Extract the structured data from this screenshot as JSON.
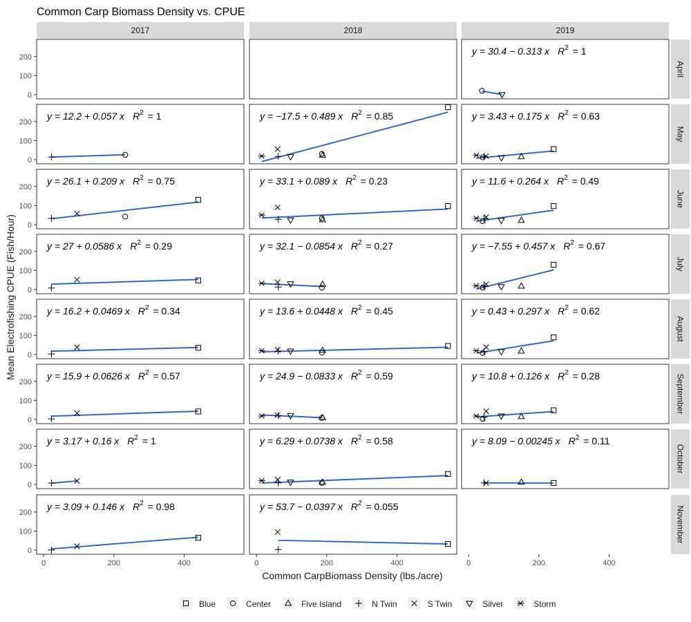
{
  "chart_data": {
    "type": "scatter",
    "title": "Common Carp Biomass Density vs. CPUE",
    "xlabel": "Common CarpBiomass Density (lbs./acre)",
    "ylabel": "Mean Electrofishing CPUE (Fish/Hour)",
    "xlim": [
      -20,
      570
    ],
    "ylim": [
      -22,
      290
    ],
    "x_ticks": [
      0,
      200,
      400
    ],
    "y_ticks": [
      0,
      100,
      200
    ],
    "grid": false,
    "legend_position": "bottom",
    "line_color": "#3366cc",
    "years": [
      "2017",
      "2018",
      "2019"
    ],
    "months": [
      "April",
      "May",
      "June",
      "July",
      "August",
      "September",
      "October",
      "November"
    ],
    "legend": [
      {
        "name": "Blue",
        "shape": "square"
      },
      {
        "name": "Center",
        "shape": "circle"
      },
      {
        "name": "Five Island",
        "shape": "triangle-up"
      },
      {
        "name": "N Twin",
        "shape": "plus"
      },
      {
        "name": "S Twin",
        "shape": "cross"
      },
      {
        "name": "Silver",
        "shape": "triangle-down"
      },
      {
        "name": "Storm",
        "shape": "asterisk"
      }
    ],
    "panels": [
      {
        "month": "April",
        "year": "2019",
        "eq_lhs": "y = 30.4 − 0.313 x",
        "r2": "1",
        "fit": {
          "intercept": 30.4,
          "slope": -0.313,
          "x_range": [
            38,
            95
          ]
        },
        "points": [
          {
            "lake": "Center",
            "x": 38,
            "y": 20
          },
          {
            "lake": "Silver",
            "x": 95,
            "y": 0
          }
        ]
      },
      {
        "month": "May",
        "year": "2017",
        "eq_lhs": "y = 12.2 + 0.057 x",
        "r2": "1",
        "fit": {
          "intercept": 12.2,
          "slope": 0.057,
          "x_range": [
            22,
            232
          ]
        },
        "points": [
          {
            "lake": "N Twin",
            "x": 22,
            "y": 14
          },
          {
            "lake": "Center",
            "x": 232,
            "y": 25
          }
        ]
      },
      {
        "month": "May",
        "year": "2018",
        "eq_lhs": "y = −17.5 + 0.489 x",
        "r2": "0.85",
        "fit": {
          "intercept": -17.5,
          "slope": 0.489,
          "x_range": [
            15,
            545
          ]
        },
        "points": [
          {
            "lake": "Storm",
            "x": 15,
            "y": 18
          },
          {
            "lake": "S Twin",
            "x": 60,
            "y": 55
          },
          {
            "lake": "N Twin",
            "x": 62,
            "y": 17
          },
          {
            "lake": "Silver",
            "x": 97,
            "y": 15
          },
          {
            "lake": "Center",
            "x": 186,
            "y": 30
          },
          {
            "lake": "Five Island",
            "x": 188,
            "y": 23
          },
          {
            "lake": "Blue",
            "x": 545,
            "y": 275
          }
        ]
      },
      {
        "month": "May",
        "year": "2019",
        "eq_lhs": "y = 3.43 + 0.175 x",
        "r2": "0.63",
        "fit": {
          "intercept": 3.43,
          "slope": 0.175,
          "x_range": [
            22,
            242
          ]
        },
        "points": [
          {
            "lake": "Storm",
            "x": 22,
            "y": 22
          },
          {
            "lake": "Center",
            "x": 40,
            "y": 12
          },
          {
            "lake": "N Twin",
            "x": 44,
            "y": 15
          },
          {
            "lake": "S Twin",
            "x": 50,
            "y": 18
          },
          {
            "lake": "Silver",
            "x": 93,
            "y": 10
          },
          {
            "lake": "Five Island",
            "x": 150,
            "y": 15
          },
          {
            "lake": "Blue",
            "x": 242,
            "y": 55
          }
        ]
      },
      {
        "month": "June",
        "year": "2017",
        "eq_lhs": "y = 26.1 + 0.209 x",
        "r2": "0.75",
        "fit": {
          "intercept": 26.1,
          "slope": 0.209,
          "x_range": [
            22,
            440
          ]
        },
        "points": [
          {
            "lake": "N Twin",
            "x": 22,
            "y": 33
          },
          {
            "lake": "S Twin",
            "x": 95,
            "y": 58
          },
          {
            "lake": "Center",
            "x": 232,
            "y": 42
          },
          {
            "lake": "Blue",
            "x": 440,
            "y": 130
          }
        ]
      },
      {
        "month": "June",
        "year": "2018",
        "eq_lhs": "y = 33.1 + 0.089 x",
        "r2": "0.23",
        "fit": {
          "intercept": 33.1,
          "slope": 0.089,
          "x_range": [
            15,
            545
          ]
        },
        "points": [
          {
            "lake": "Storm",
            "x": 15,
            "y": 50
          },
          {
            "lake": "S Twin",
            "x": 60,
            "y": 90
          },
          {
            "lake": "N Twin",
            "x": 62,
            "y": 28
          },
          {
            "lake": "Silver",
            "x": 97,
            "y": 24
          },
          {
            "lake": "Center",
            "x": 186,
            "y": 33
          },
          {
            "lake": "Five Island",
            "x": 188,
            "y": 25
          },
          {
            "lake": "Blue",
            "x": 545,
            "y": 97
          }
        ]
      },
      {
        "month": "June",
        "year": "2019",
        "eq_lhs": "y = 11.6 + 0.264 x",
        "r2": "0.49",
        "fit": {
          "intercept": 11.6,
          "slope": 0.264,
          "x_range": [
            22,
            242
          ]
        },
        "points": [
          {
            "lake": "Storm",
            "x": 22,
            "y": 33
          },
          {
            "lake": "Center",
            "x": 40,
            "y": 18
          },
          {
            "lake": "N Twin",
            "x": 44,
            "y": 30
          },
          {
            "lake": "S Twin",
            "x": 50,
            "y": 40
          },
          {
            "lake": "Silver",
            "x": 93,
            "y": 22
          },
          {
            "lake": "Five Island",
            "x": 150,
            "y": 22
          },
          {
            "lake": "Blue",
            "x": 242,
            "y": 97
          }
        ]
      },
      {
        "month": "July",
        "year": "2017",
        "eq_lhs": "y = 27 + 0.0586 x",
        "r2": "0.29",
        "fit": {
          "intercept": 27,
          "slope": 0.0586,
          "x_range": [
            22,
            440
          ]
        },
        "points": [
          {
            "lake": "N Twin",
            "x": 22,
            "y": 8
          },
          {
            "lake": "S Twin",
            "x": 95,
            "y": 52
          },
          {
            "lake": "Blue",
            "x": 440,
            "y": 48
          }
        ]
      },
      {
        "month": "July",
        "year": "2018",
        "eq_lhs": "y = 32.1 − 0.0854 x",
        "r2": "0.27",
        "fit": {
          "intercept": 32.1,
          "slope": -0.0854,
          "x_range": [
            15,
            188
          ]
        },
        "points": [
          {
            "lake": "Storm",
            "x": 15,
            "y": 33
          },
          {
            "lake": "S Twin",
            "x": 60,
            "y": 38
          },
          {
            "lake": "N Twin",
            "x": 62,
            "y": 13
          },
          {
            "lake": "Silver",
            "x": 97,
            "y": 30
          },
          {
            "lake": "Center",
            "x": 186,
            "y": 10
          },
          {
            "lake": "Five Island",
            "x": 188,
            "y": 27
          }
        ]
      },
      {
        "month": "July",
        "year": "2019",
        "eq_lhs": "y = −7.55 + 0.457 x",
        "r2": "0.67",
        "fit": {
          "intercept": -7.55,
          "slope": 0.457,
          "x_range": [
            22,
            242
          ]
        },
        "points": [
          {
            "lake": "Storm",
            "x": 22,
            "y": 20
          },
          {
            "lake": "Center",
            "x": 40,
            "y": 10
          },
          {
            "lake": "N Twin",
            "x": 44,
            "y": 18
          },
          {
            "lake": "S Twin",
            "x": 50,
            "y": 28
          },
          {
            "lake": "Silver",
            "x": 93,
            "y": 15
          },
          {
            "lake": "Five Island",
            "x": 150,
            "y": 18
          },
          {
            "lake": "Blue",
            "x": 242,
            "y": 130
          }
        ]
      },
      {
        "month": "August",
        "year": "2017",
        "eq_lhs": "y = 16.2 + 0.0469 x",
        "r2": "0.34",
        "fit": {
          "intercept": 16.2,
          "slope": 0.0469,
          "x_range": [
            22,
            440
          ]
        },
        "points": [
          {
            "lake": "N Twin",
            "x": 22,
            "y": 3
          },
          {
            "lake": "S Twin",
            "x": 95,
            "y": 38
          },
          {
            "lake": "Blue",
            "x": 440,
            "y": 35
          }
        ]
      },
      {
        "month": "August",
        "year": "2018",
        "eq_lhs": "y = 13.6 + 0.0448 x",
        "r2": "0.45",
        "fit": {
          "intercept": 13.6,
          "slope": 0.0448,
          "x_range": [
            15,
            545
          ]
        },
        "points": [
          {
            "lake": "Storm",
            "x": 15,
            "y": 20
          },
          {
            "lake": "S Twin",
            "x": 60,
            "y": 25
          },
          {
            "lake": "N Twin",
            "x": 62,
            "y": 18
          },
          {
            "lake": "Silver",
            "x": 97,
            "y": 18
          },
          {
            "lake": "Center",
            "x": 186,
            "y": 10
          },
          {
            "lake": "Five Island",
            "x": 188,
            "y": 22
          },
          {
            "lake": "Blue",
            "x": 545,
            "y": 45
          }
        ]
      },
      {
        "month": "August",
        "year": "2019",
        "eq_lhs": "y = 0.43 + 0.297 x",
        "r2": "0.62",
        "fit": {
          "intercept": 0.43,
          "slope": 0.297,
          "x_range": [
            22,
            242
          ]
        },
        "points": [
          {
            "lake": "Storm",
            "x": 22,
            "y": 20
          },
          {
            "lake": "Center",
            "x": 40,
            "y": 8
          },
          {
            "lake": "N Twin",
            "x": 44,
            "y": 15
          },
          {
            "lake": "S Twin",
            "x": 50,
            "y": 38
          },
          {
            "lake": "Silver",
            "x": 93,
            "y": 15
          },
          {
            "lake": "Five Island",
            "x": 150,
            "y": 18
          },
          {
            "lake": "Blue",
            "x": 242,
            "y": 90
          }
        ]
      },
      {
        "month": "September",
        "year": "2017",
        "eq_lhs": "y = 15.9 + 0.0626 x",
        "r2": "0.57",
        "fit": {
          "intercept": 15.9,
          "slope": 0.0626,
          "x_range": [
            22,
            440
          ]
        },
        "points": [
          {
            "lake": "N Twin",
            "x": 22,
            "y": 3
          },
          {
            "lake": "S Twin",
            "x": 95,
            "y": 33
          },
          {
            "lake": "Blue",
            "x": 440,
            "y": 42
          }
        ]
      },
      {
        "month": "September",
        "year": "2018",
        "eq_lhs": "y = 24.9 − 0.0833 x",
        "r2": "0.59",
        "fit": {
          "intercept": 24.9,
          "slope": -0.0833,
          "x_range": [
            15,
            188
          ]
        },
        "points": [
          {
            "lake": "Storm",
            "x": 15,
            "y": 18
          },
          {
            "lake": "S Twin",
            "x": 60,
            "y": 23
          },
          {
            "lake": "N Twin",
            "x": 62,
            "y": 20
          },
          {
            "lake": "Silver",
            "x": 97,
            "y": 20
          },
          {
            "lake": "Center",
            "x": 186,
            "y": 8
          },
          {
            "lake": "Five Island",
            "x": 188,
            "y": 10
          }
        ]
      },
      {
        "month": "September",
        "year": "2019",
        "eq_lhs": "y = 10.8 + 0.126 x",
        "r2": "0.28",
        "fit": {
          "intercept": 10.8,
          "slope": 0.126,
          "x_range": [
            22,
            242
          ]
        },
        "points": [
          {
            "lake": "Storm",
            "x": 22,
            "y": 18
          },
          {
            "lake": "Center",
            "x": 40,
            "y": 3
          },
          {
            "lake": "N Twin",
            "x": 44,
            "y": 12
          },
          {
            "lake": "S Twin",
            "x": 50,
            "y": 43
          },
          {
            "lake": "Silver",
            "x": 93,
            "y": 18
          },
          {
            "lake": "Five Island",
            "x": 150,
            "y": 15
          },
          {
            "lake": "Blue",
            "x": 242,
            "y": 48
          }
        ]
      },
      {
        "month": "October",
        "year": "2017",
        "eq_lhs": "y = 3.17 + 0.16 x",
        "r2": "1",
        "fit": {
          "intercept": 3.17,
          "slope": 0.16,
          "x_range": [
            22,
            95
          ]
        },
        "points": [
          {
            "lake": "N Twin",
            "x": 22,
            "y": 7
          },
          {
            "lake": "S Twin",
            "x": 95,
            "y": 18
          }
        ]
      },
      {
        "month": "October",
        "year": "2018",
        "eq_lhs": "y = 6.29 + 0.0738 x",
        "r2": "0.58",
        "fit": {
          "intercept": 6.29,
          "slope": 0.0738,
          "x_range": [
            15,
            545
          ]
        },
        "points": [
          {
            "lake": "Storm",
            "x": 15,
            "y": 20
          },
          {
            "lake": "S Twin",
            "x": 60,
            "y": 25
          },
          {
            "lake": "N Twin",
            "x": 62,
            "y": 8
          },
          {
            "lake": "Silver",
            "x": 97,
            "y": 12
          },
          {
            "lake": "Center",
            "x": 186,
            "y": 7
          },
          {
            "lake": "Five Island",
            "x": 188,
            "y": 12
          },
          {
            "lake": "Blue",
            "x": 545,
            "y": 55
          }
        ]
      },
      {
        "month": "October",
        "year": "2019",
        "eq_lhs": "y = 8.09 − 0.00245 x",
        "r2": "0.11",
        "fit": {
          "intercept": 8.09,
          "slope": -0.00245,
          "x_range": [
            44,
            242
          ]
        },
        "points": [
          {
            "lake": "N Twin",
            "x": 44,
            "y": 8
          },
          {
            "lake": "S Twin",
            "x": 50,
            "y": 8
          },
          {
            "lake": "Five Island",
            "x": 150,
            "y": 12
          },
          {
            "lake": "Blue",
            "x": 242,
            "y": 7
          }
        ]
      },
      {
        "month": "November",
        "year": "2017",
        "eq_lhs": "y = 3.09 + 0.146 x",
        "r2": "0.98",
        "fit": {
          "intercept": 3.09,
          "slope": 0.146,
          "x_range": [
            22,
            440
          ]
        },
        "points": [
          {
            "lake": "N Twin",
            "x": 22,
            "y": 0
          },
          {
            "lake": "S Twin",
            "x": 95,
            "y": 20
          },
          {
            "lake": "Blue",
            "x": 440,
            "y": 65
          }
        ]
      },
      {
        "month": "November",
        "year": "2018",
        "eq_lhs": "y = 53.7 − 0.0397 x",
        "r2": "0.055",
        "fit": {
          "intercept": 53.7,
          "slope": -0.0397,
          "x_range": [
            62,
            545
          ]
        },
        "points": [
          {
            "lake": "S Twin",
            "x": 60,
            "y": 95
          },
          {
            "lake": "N Twin",
            "x": 62,
            "y": 3
          },
          {
            "lake": "Blue",
            "x": 545,
            "y": 32
          }
        ]
      }
    ]
  }
}
